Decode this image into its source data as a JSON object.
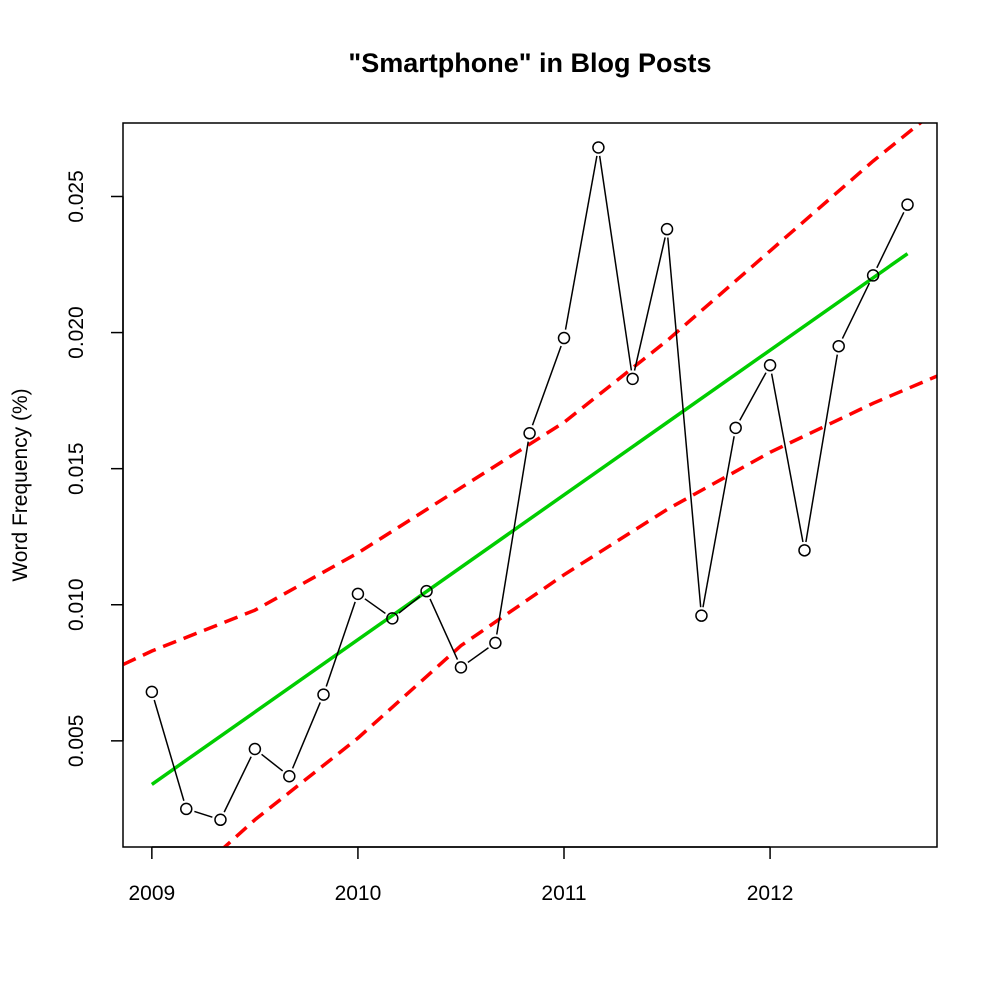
{
  "chart_data": {
    "type": "line",
    "title": "\"Smartphone\" in Blog Posts",
    "xlabel": "",
    "ylabel": "Word Frequency (%)",
    "xlim": [
      2008.86,
      2012.81
    ],
    "ylim": [
      0.0011,
      0.0277
    ],
    "x_ticks": [
      {
        "value": 2009,
        "label": "2009"
      },
      {
        "value": 2010,
        "label": "2010"
      },
      {
        "value": 2011,
        "label": "2011"
      },
      {
        "value": 2012,
        "label": "2012"
      }
    ],
    "y_ticks": [
      {
        "value": 0.005,
        "label": "0.005"
      },
      {
        "value": 0.01,
        "label": "0.010"
      },
      {
        "value": 0.015,
        "label": "0.015"
      },
      {
        "value": 0.02,
        "label": "0.020"
      },
      {
        "value": 0.025,
        "label": "0.025"
      }
    ],
    "grid": false,
    "series": [
      {
        "style": "observed points with connecting line",
        "color": "#000000",
        "x": [
          2009.0,
          2009.167,
          2009.333,
          2009.5,
          2009.667,
          2009.833,
          2010.0,
          2010.167,
          2010.333,
          2010.5,
          2010.667,
          2010.833,
          2011.0,
          2011.167,
          2011.333,
          2011.5,
          2011.667,
          2011.833,
          2012.0,
          2012.167,
          2012.333,
          2012.5,
          2012.667
        ],
        "values": [
          0.0068,
          0.0025,
          0.0021,
          0.0047,
          0.0037,
          0.0067,
          0.0104,
          0.0095,
          0.0105,
          0.0077,
          0.0086,
          0.0163,
          0.0198,
          0.0268,
          0.0183,
          0.0238,
          0.0096,
          0.0165,
          0.0188,
          0.012,
          0.0195,
          0.0221,
          0.0247
        ]
      },
      {
        "style": "fitted trend line (solid)",
        "color": "#00cd00",
        "x": [
          2009.0,
          2012.667
        ],
        "values": [
          0.0034,
          0.0229
        ]
      },
      {
        "style": "upper confidence band (dashed)",
        "color": "#ff0000",
        "x": [
          2008.86,
          2009.0,
          2009.5,
          2010.0,
          2010.5,
          2011.0,
          2011.5,
          2012.0,
          2012.5,
          2012.81
        ],
        "values": [
          0.0078,
          0.0083,
          0.0098,
          0.0119,
          0.0143,
          0.0167,
          0.0197,
          0.023,
          0.0263,
          0.0282
        ]
      },
      {
        "style": "lower confidence band (dashed)",
        "color": "#ff0000",
        "x": [
          2009.25,
          2009.5,
          2010.0,
          2010.5,
          2011.0,
          2011.5,
          2012.0,
          2012.5,
          2012.81
        ],
        "values": [
          0.0004,
          0.0021,
          0.0051,
          0.0085,
          0.0111,
          0.0135,
          0.0156,
          0.0174,
          0.0184
        ]
      }
    ]
  }
}
